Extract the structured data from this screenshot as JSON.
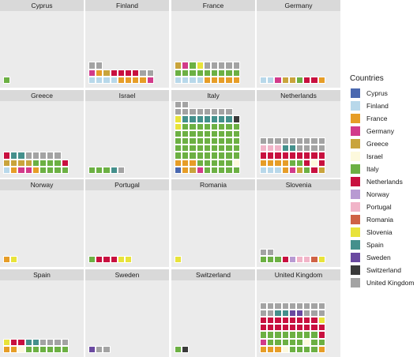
{
  "chart_data": {
    "type": "waffle",
    "legend_title": "Countries",
    "legend_position": "right",
    "facet_layout": {
      "ncol": 4,
      "nrow": 4
    },
    "colors": {
      "Cyprus": "#4a68b0",
      "Finland": "#b8d8ea",
      "France": "#e69d27",
      "Germany": "#d23a8a",
      "Greece": "#c9a43c",
      "Israel": "#fdf9dd",
      "Italy": "#6cb043",
      "Netherlands": "#c8103f",
      "Norway": "#b89ad2",
      "Portugal": "#f1b4c8",
      "Romania": "#cf6245",
      "Slovenia": "#e8e33a",
      "Spain": "#44908c",
      "Sweden": "#6a49a0",
      "Switzerland": "#3a3a3a",
      "United Kingdom": "#a3a3a3"
    },
    "legend_entries": [
      "Cyprus",
      "Finland",
      "France",
      "Germany",
      "Greece",
      "Israel",
      "Italy",
      "Netherlands",
      "Norway",
      "Portugal",
      "Romania",
      "Slovenia",
      "Spain",
      "Sweden",
      "Switzerland",
      "United Kingdom"
    ],
    "panels": [
      {
        "title": "Cyprus",
        "rows": [
          [
            "Italy"
          ]
        ]
      },
      {
        "title": "Finland",
        "rows": [
          [
            "Finland",
            "Finland",
            "Finland",
            "Finland",
            "France",
            "France",
            "France",
            "France",
            "Germany"
          ],
          [
            "Germany",
            "France",
            "Greece",
            "Netherlands",
            "Netherlands",
            "Netherlands",
            "Netherlands",
            "United Kingdom",
            "United Kingdom"
          ],
          [
            "United Kingdom",
            "United Kingdom"
          ]
        ]
      },
      {
        "title": "France",
        "rows": [
          [
            "Finland",
            "Finland",
            "Finland",
            "Finland",
            "France",
            "France",
            "France",
            "France",
            "France"
          ],
          [
            "Italy",
            "Italy",
            "Italy",
            "Italy",
            "Italy",
            "Italy",
            "Italy",
            "Italy",
            "Italy"
          ],
          [
            "Greece",
            "Germany",
            "Italy",
            "Slovenia",
            "United Kingdom",
            "United Kingdom",
            "United Kingdom",
            "United Kingdom",
            "United Kingdom"
          ]
        ]
      },
      {
        "title": "Germany",
        "rows": [
          [
            "Finland",
            "Finland",
            "Germany",
            "Greece",
            "Greece",
            "Italy",
            "Netherlands",
            "Netherlands",
            "France"
          ]
        ]
      },
      {
        "title": "Greece",
        "rows": [
          [
            "Finland",
            "France",
            "Germany",
            "Germany",
            "France",
            "Italy",
            "Italy",
            "Italy",
            "Italy"
          ],
          [
            "Greece",
            "Greece",
            "Greece",
            "Greece",
            "Italy",
            "Italy",
            "Italy",
            "Italy",
            "Netherlands"
          ],
          [
            "Netherlands",
            "Spain",
            "Spain",
            "United Kingdom",
            "United Kingdom",
            "United Kingdom",
            "United Kingdom",
            "United Kingdom"
          ]
        ]
      },
      {
        "title": "Israel",
        "rows": [
          [
            "Italy",
            "Italy",
            "Italy",
            "Spain",
            "United Kingdom"
          ]
        ]
      },
      {
        "title": "Italy",
        "rows": [
          [
            "Cyprus",
            "France",
            "Greece",
            "Germany",
            "Italy",
            "Italy",
            "Italy",
            "Italy",
            "Italy"
          ],
          [
            "France",
            "France",
            "France",
            "Italy",
            "Italy",
            "Italy",
            "Italy",
            "Italy",
            "Israel"
          ],
          [
            "Italy",
            "Italy",
            "Italy",
            "Italy",
            "Italy",
            "Italy",
            "Italy",
            "Italy",
            "Italy"
          ],
          [
            "Italy",
            "Italy",
            "Italy",
            "Italy",
            "Italy",
            "Italy",
            "Italy",
            "Italy",
            "Italy"
          ],
          [
            "Italy",
            "Italy",
            "Italy",
            "Italy",
            "Italy",
            "Italy",
            "Italy",
            "Italy",
            "Italy"
          ],
          [
            "Italy",
            "Italy",
            "Italy",
            "Italy",
            "Italy",
            "Italy",
            "Italy",
            "Italy",
            "Italy"
          ],
          [
            "Slovenia",
            "Italy",
            "Italy",
            "Italy",
            "Italy",
            "Italy",
            "Italy",
            "Italy",
            "Italy"
          ],
          [
            "Slovenia",
            "Spain",
            "Spain",
            "Spain",
            "Spain",
            "Spain",
            "Spain",
            "Spain",
            "Switzerland"
          ],
          [
            "United Kingdom",
            "United Kingdom",
            "United Kingdom",
            "United Kingdom",
            "United Kingdom",
            "United Kingdom",
            "United Kingdom",
            "United Kingdom"
          ],
          [
            "United Kingdom",
            "United Kingdom"
          ]
        ]
      },
      {
        "title": "Netherlands",
        "rows": [
          [
            "Finland",
            "Finland",
            "Finland",
            "France",
            "Germany",
            "Greece",
            "Italy",
            "Netherlands",
            "Greece"
          ],
          [
            "France",
            "France",
            "France",
            "France",
            "Italy",
            "Italy",
            "Netherlands",
            "Israel",
            "Netherlands"
          ],
          [
            "Netherlands",
            "Netherlands",
            "Netherlands",
            "Netherlands",
            "Netherlands",
            "Netherlands",
            "Netherlands",
            "Netherlands",
            "Netherlands"
          ],
          [
            "Portugal",
            "Portugal",
            "Portugal",
            "Spain",
            "Spain",
            "United Kingdom",
            "United Kingdom",
            "United Kingdom",
            "United Kingdom"
          ],
          [
            "United Kingdom",
            "United Kingdom",
            "United Kingdom",
            "United Kingdom",
            "United Kingdom",
            "United Kingdom",
            "United Kingdom",
            "United Kingdom",
            "United Kingdom"
          ]
        ]
      },
      {
        "title": "Norway",
        "rows": [
          [
            "France",
            "Slovenia"
          ]
        ]
      },
      {
        "title": "Portugal",
        "rows": [
          [
            "Italy",
            "Netherlands",
            "Netherlands",
            "Netherlands",
            "Slovenia",
            "Slovenia"
          ]
        ]
      },
      {
        "title": "Romania",
        "rows": [
          [
            "Slovenia"
          ]
        ]
      },
      {
        "title": "Slovenia",
        "rows": [
          [
            "Italy",
            "Italy",
            "Italy",
            "Netherlands",
            "Norway",
            "Portugal",
            "Portugal",
            "Romania",
            "Slovenia"
          ],
          [
            "United Kingdom",
            "United Kingdom"
          ]
        ]
      },
      {
        "title": "Spain",
        "rows": [
          [
            "France",
            "France",
            "Israel",
            "Italy",
            "Italy",
            "Italy",
            "Italy",
            "Italy",
            "Italy"
          ],
          [
            "Slovenia",
            "Netherlands",
            "Netherlands",
            "Spain",
            "Spain",
            "United Kingdom",
            "United Kingdom",
            "United Kingdom",
            "United Kingdom"
          ]
        ]
      },
      {
        "title": "Sweden",
        "rows": [
          [
            "Sweden",
            "United Kingdom",
            "United Kingdom"
          ]
        ]
      },
      {
        "title": "Switzerland",
        "rows": [
          [
            "Italy",
            "Switzerland"
          ]
        ]
      },
      {
        "title": "United Kingdom",
        "rows": [
          [
            "France",
            "France",
            "France",
            "Israel",
            "Italy",
            "Italy",
            "Italy",
            "Italy",
            "France"
          ],
          [
            "Germany",
            "Italy",
            "Italy",
            "Italy",
            "Italy",
            "Italy",
            "Israel",
            "Italy",
            "Italy"
          ],
          [
            "Italy",
            "Italy",
            "Italy",
            "Italy",
            "Italy",
            "Italy",
            "Italy",
            "Italy",
            "Netherlands"
          ],
          [
            "Netherlands",
            "Netherlands",
            "Netherlands",
            "Netherlands",
            "Netherlands",
            "Netherlands",
            "Netherlands",
            "Netherlands",
            "Netherlands"
          ],
          [
            "Netherlands",
            "Netherlands",
            "Netherlands",
            "Netherlands",
            "Netherlands",
            "Netherlands",
            "Netherlands",
            "Netherlands",
            "Slovenia"
          ],
          [
            "United Kingdom",
            "United Kingdom",
            "Spain",
            "Spain",
            "Sweden",
            "Sweden",
            "United Kingdom",
            "United Kingdom",
            "United Kingdom"
          ],
          [
            "United Kingdom",
            "United Kingdom",
            "United Kingdom",
            "United Kingdom",
            "United Kingdom",
            "United Kingdom",
            "United Kingdom",
            "United Kingdom",
            "United Kingdom"
          ]
        ]
      }
    ]
  }
}
